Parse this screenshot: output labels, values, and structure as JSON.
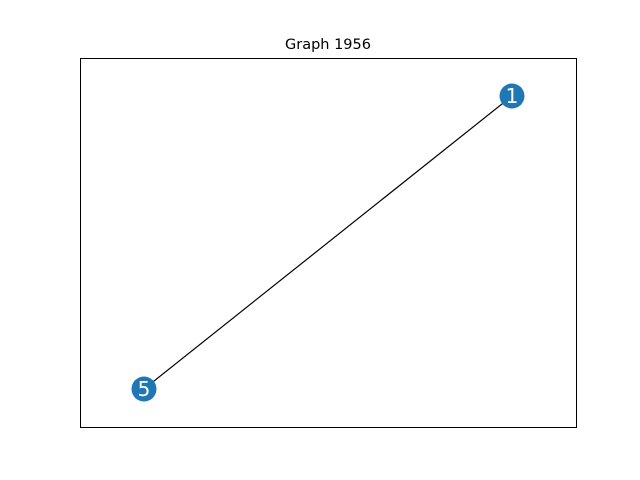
{
  "title": "Graph 1956",
  "colors": {
    "node": "#1f77b4",
    "edge": "#000000",
    "label": "#ffffff",
    "frame": "#000000"
  },
  "graph": {
    "nodes": [
      {
        "id": "1",
        "label": "1"
      },
      {
        "id": "5",
        "label": "5"
      }
    ],
    "edges": [
      {
        "source": "1",
        "target": "5"
      }
    ]
  }
}
